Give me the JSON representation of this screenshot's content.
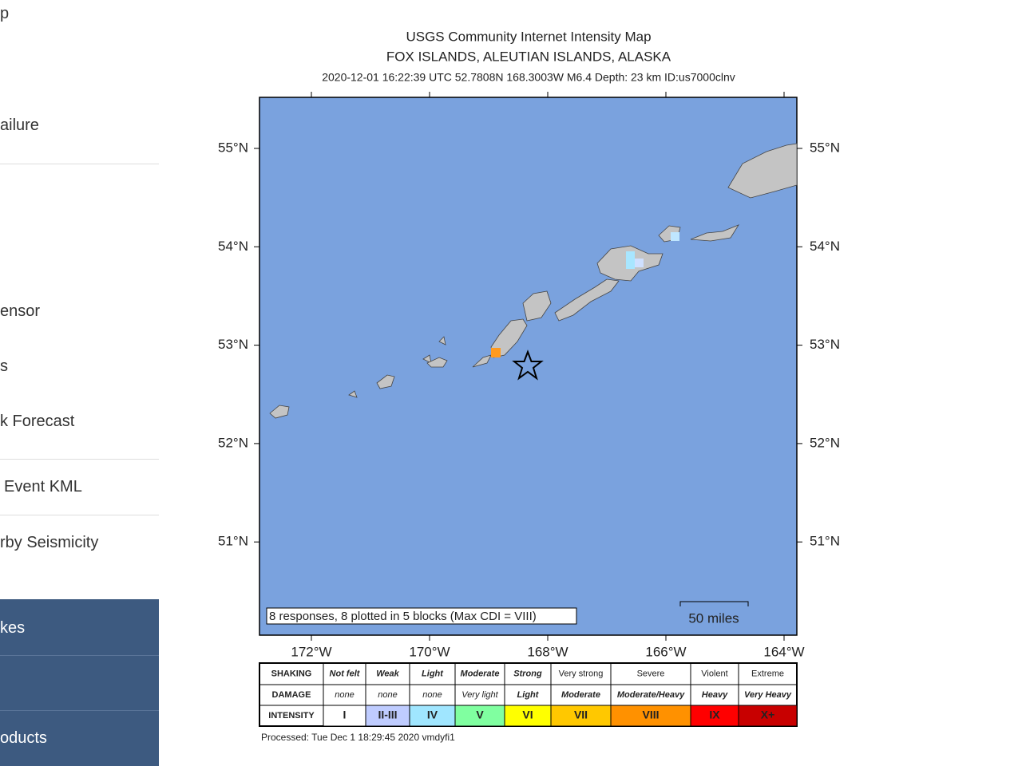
{
  "sidebar": {
    "items": [
      "p",
      "ailure",
      "ensor",
      "s",
      "k Forecast",
      "Event KML",
      "rby Seismicity"
    ],
    "dark_items": [
      "kes",
      "oducts"
    ]
  },
  "map": {
    "title": "USGS Community Internet Intensity Map",
    "subtitle": "FOX ISLANDS, ALEUTIAN ISLANDS, ALASKA",
    "event_info": "2020-12-01 16:22:39 UTC 52.7808N 168.3003W M6.4 Depth: 23 km ID:us7000clnv",
    "lat_labels": [
      "55°N",
      "54°N",
      "53°N",
      "52°N",
      "51°N"
    ],
    "lon_labels": [
      "172°W",
      "170°W",
      "168°W",
      "166°W",
      "164°W"
    ],
    "responses": "8 responses, 8 plotted in 5 blocks (Max CDI = VIII)",
    "scale": "50 miles",
    "processed": "Processed: Tue Dec  1 18:29:45 2020 vmdyfi1"
  },
  "legend": {
    "row_headers": [
      "SHAKING",
      "DAMAGE",
      "INTENSITY"
    ],
    "shaking": [
      "Not felt",
      "Weak",
      "Light",
      "Moderate",
      "Strong",
      "Very strong",
      "Severe",
      "Violent",
      "Extreme"
    ],
    "damage": [
      "none",
      "none",
      "none",
      "Very light",
      "Light",
      "Moderate",
      "Moderate/Heavy",
      "Heavy",
      "Very Heavy"
    ],
    "intensity": [
      "I",
      "II-III",
      "IV",
      "V",
      "VI",
      "VII",
      "VIII",
      "IX",
      "X+"
    ]
  }
}
